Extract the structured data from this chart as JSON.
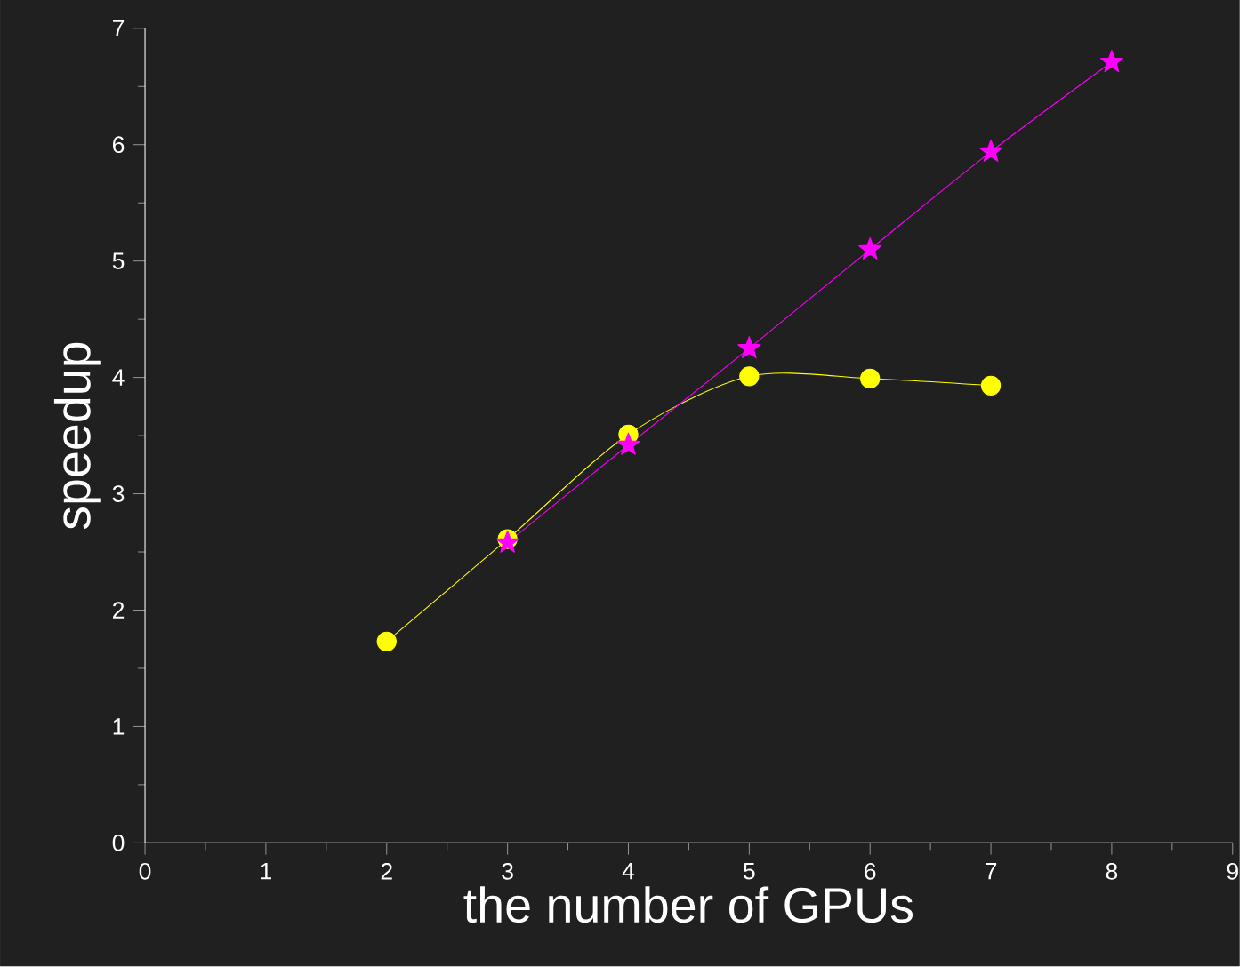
{
  "chart_data": {
    "type": "line",
    "xlabel": "the number of GPUs",
    "ylabel": "speedup",
    "xlim": [
      0,
      9
    ],
    "xticks": [
      0,
      1,
      2,
      3,
      4,
      5,
      6,
      7,
      8,
      9
    ],
    "ylim": [
      0,
      7
    ],
    "yticks": [
      0,
      1,
      2,
      3,
      4,
      5,
      6,
      7
    ],
    "grid": false,
    "series": [
      {
        "color": "#ffff00",
        "marker": "circle",
        "x": [
          2,
          3,
          4,
          5,
          6,
          7
        ],
        "values": [
          1.73,
          2.61,
          3.51,
          4.01,
          3.99,
          3.93
        ]
      },
      {
        "color": "#ff00ff",
        "marker": "star",
        "x": [
          3,
          4,
          5,
          6,
          7,
          8
        ],
        "values": [
          2.58,
          3.42,
          4.25,
          5.1,
          5.94,
          6.71
        ]
      }
    ]
  }
}
